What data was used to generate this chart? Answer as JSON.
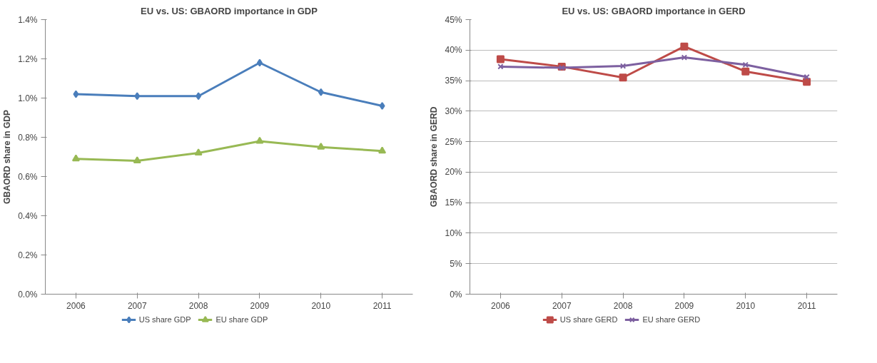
{
  "chart_data": [
    {
      "type": "line",
      "title": "EU vs. US: GBAORD importance in GDP",
      "ylabel": "GBAORD share in GDP",
      "categories": [
        "2006",
        "2007",
        "2008",
        "2009",
        "2010",
        "2011"
      ],
      "series": [
        {
          "name": "US share GDP",
          "color": "#4a7ebb",
          "marker": "diamond",
          "values": [
            1.02,
            1.01,
            1.01,
            1.18,
            1.03,
            0.96
          ]
        },
        {
          "name": "EU share GDP",
          "color": "#98b954",
          "marker": "triangle",
          "values": [
            0.69,
            0.68,
            0.72,
            0.78,
            0.75,
            0.73
          ]
        }
      ],
      "ylim": [
        0,
        1.4
      ],
      "yticks": [
        {
          "value": 0,
          "label": "0.0%"
        },
        {
          "value": 0.2,
          "label": "0.2%"
        },
        {
          "value": 0.4,
          "label": "0.4%"
        },
        {
          "value": 0.6,
          "label": "0.6%"
        },
        {
          "value": 0.8,
          "label": "0.8%"
        },
        {
          "value": 1.0,
          "label": "1.0%"
        },
        {
          "value": 1.2,
          "label": "1.2%"
        },
        {
          "value": 1.4,
          "label": "1.4%"
        }
      ],
      "grid": false,
      "legend": "bottom"
    },
    {
      "type": "line",
      "title": "EU vs. US: GBAORD importance in GERD",
      "ylabel": "GBAORD share in GERD",
      "categories": [
        "2006",
        "2007",
        "2008",
        "2009",
        "2010",
        "2011"
      ],
      "series": [
        {
          "name": "US share GERD",
          "color": "#be4b48",
          "marker": "square",
          "values": [
            38.5,
            37.3,
            35.5,
            40.6,
            36.5,
            34.8
          ]
        },
        {
          "name": "EU share GERD",
          "color": "#7d60a0",
          "marker": "cross",
          "values": [
            37.3,
            37.1,
            37.4,
            38.8,
            37.6,
            35.6
          ]
        }
      ],
      "ylim": [
        0,
        45
      ],
      "yticks": [
        {
          "value": 0,
          "label": "0%"
        },
        {
          "value": 5,
          "label": "5%"
        },
        {
          "value": 10,
          "label": "10%"
        },
        {
          "value": 15,
          "label": "15%"
        },
        {
          "value": 20,
          "label": "20%"
        },
        {
          "value": 25,
          "label": "25%"
        },
        {
          "value": 30,
          "label": "30%"
        },
        {
          "value": 35,
          "label": "35%"
        },
        {
          "value": 40,
          "label": "40%"
        },
        {
          "value": 45,
          "label": "45%"
        }
      ],
      "grid": "y",
      "legend": "bottom"
    }
  ]
}
